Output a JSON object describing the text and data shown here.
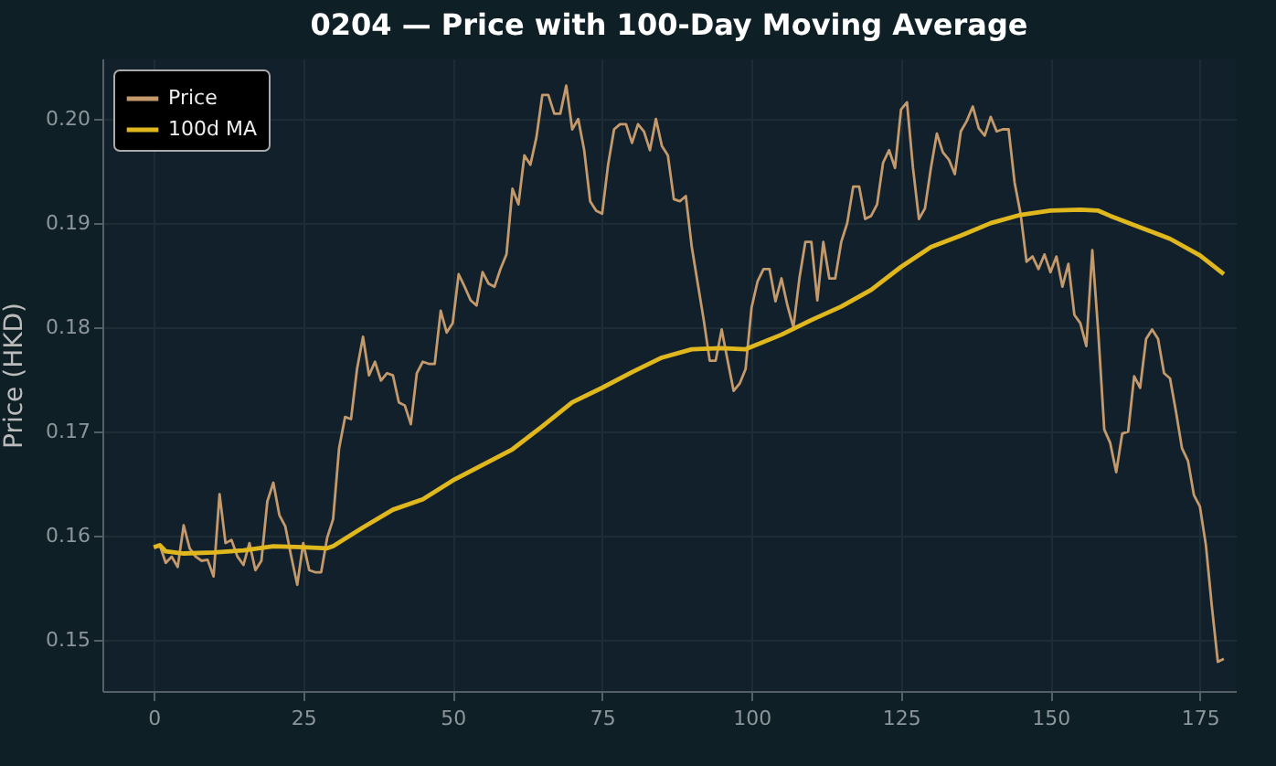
{
  "chart_data": {
    "type": "line",
    "title": "0204 — Price with 100-Day Moving Average",
    "ylabel": "Price (HKD)",
    "xlim": [
      -8.6,
      181
    ],
    "ylim": [
      0.1451,
      0.2058
    ],
    "xticks": [
      0,
      25,
      50,
      75,
      100,
      125,
      150,
      175
    ],
    "yticks": [
      {
        "value": 0.15,
        "label": "0.15"
      },
      {
        "value": 0.16,
        "label": "0.16"
      },
      {
        "value": 0.17,
        "label": "0.17"
      },
      {
        "value": 0.18,
        "label": "0.18"
      },
      {
        "value": 0.19,
        "label": "0.19"
      },
      {
        "value": 0.2,
        "label": "0.20"
      }
    ],
    "grid": true,
    "legend": "top left",
    "line_style": "solid",
    "series": [
      {
        "name": "Price",
        "color": "#c49a6c",
        "x": [
          0,
          1,
          2,
          3,
          4,
          5,
          6,
          7,
          8,
          9,
          10,
          11,
          12,
          13,
          14,
          15,
          16,
          17,
          18,
          19,
          20,
          21,
          22,
          23,
          24,
          25,
          26,
          27,
          28,
          29,
          30,
          31,
          32,
          33,
          34,
          35,
          36,
          37,
          38,
          39,
          40,
          41,
          42,
          43,
          44,
          45,
          46,
          47,
          48,
          49,
          50,
          51,
          52,
          53,
          54,
          55,
          56,
          57,
          58,
          59,
          60,
          61,
          62,
          63,
          64,
          65,
          66,
          67,
          68,
          69,
          70,
          71,
          72,
          73,
          74,
          75,
          76,
          77,
          78,
          79,
          80,
          81,
          82,
          83,
          84,
          85,
          86,
          87,
          88,
          89,
          90,
          91,
          92,
          93,
          94,
          95,
          96,
          97,
          98,
          99,
          100,
          101,
          102,
          103,
          104,
          105,
          106,
          107,
          108,
          109,
          110,
          111,
          112,
          113,
          114,
          115,
          116,
          117,
          118,
          119,
          120,
          121,
          122,
          123,
          124,
          125,
          126,
          127,
          128,
          129,
          130,
          131,
          132,
          133,
          134,
          135,
          136,
          137,
          138,
          139,
          140,
          141,
          142,
          143,
          144,
          145,
          146,
          147,
          148,
          149,
          150,
          151,
          152,
          153,
          154,
          155,
          156,
          157,
          158,
          159,
          160,
          161,
          162,
          163,
          164,
          165,
          166,
          167,
          168,
          169,
          170,
          171,
          172,
          173,
          174,
          175,
          176,
          177,
          178,
          179
        ],
        "values": [
          0.1589,
          0.1591,
          0.1574,
          0.158,
          0.157,
          0.161,
          0.1588,
          0.158,
          0.1576,
          0.1577,
          0.1561,
          0.164,
          0.1593,
          0.1596,
          0.158,
          0.1572,
          0.1593,
          0.1567,
          0.1576,
          0.1633,
          0.1651,
          0.162,
          0.1609,
          0.158,
          0.1553,
          0.1593,
          0.1567,
          0.1565,
          0.1565,
          0.1598,
          0.1616,
          0.1684,
          0.1714,
          0.1712,
          0.176,
          0.1791,
          0.1754,
          0.1767,
          0.1749,
          0.1756,
          0.1754,
          0.1728,
          0.1725,
          0.1707,
          0.1756,
          0.1767,
          0.1765,
          0.1765,
          0.1816,
          0.1795,
          0.1804,
          0.1851,
          0.1839,
          0.1826,
          0.1821,
          0.1853,
          0.1842,
          0.1839,
          0.1856,
          0.187,
          0.1933,
          0.1918,
          0.1965,
          0.1956,
          0.1982,
          0.2023,
          0.2023,
          0.2005,
          0.2005,
          0.2032,
          0.199,
          0.2,
          0.197,
          0.1921,
          0.1912,
          0.1909,
          0.1956,
          0.199,
          0.1995,
          0.1995,
          0.1977,
          0.1995,
          0.1988,
          0.197,
          0.2,
          0.1974,
          0.1965,
          0.1923,
          0.1921,
          0.1926,
          0.1877,
          0.1842,
          0.1807,
          0.1768,
          0.1768,
          0.1798,
          0.1768,
          0.1739,
          0.1746,
          0.176,
          0.1819,
          0.1844,
          0.1856,
          0.1856,
          0.1825,
          0.1847,
          0.1821,
          0.18,
          0.1847,
          0.1882,
          0.1882,
          0.1826,
          0.1882,
          0.1847,
          0.1847,
          0.1882,
          0.19,
          0.1935,
          0.1935,
          0.1904,
          0.1907,
          0.1918,
          0.1958,
          0.197,
          0.1953,
          0.2009,
          0.2016,
          0.1953,
          0.1904,
          0.1914,
          0.1953,
          0.1986,
          0.1968,
          0.1961,
          0.1947,
          0.1988,
          0.1998,
          0.2012,
          0.1991,
          0.1984,
          0.2002,
          0.1988,
          0.199,
          0.199,
          0.1939,
          0.1909,
          0.1863,
          0.1868,
          0.1856,
          0.187,
          0.1853,
          0.1868,
          0.1839,
          0.1861,
          0.1812,
          0.1804,
          0.1782,
          0.1874,
          0.1795,
          0.1702,
          0.1689,
          0.1661,
          0.1698,
          0.17,
          0.1753,
          0.1742,
          0.1789,
          0.1798,
          0.1789,
          0.1756,
          0.1751,
          0.1719,
          0.1684,
          0.1672,
          0.1639,
          0.1628,
          0.1591,
          0.1532,
          0.1479,
          0.1482
        ]
      },
      {
        "name": "100d MA",
        "color": "#e0b81e",
        "x": [
          0,
          1,
          2,
          5,
          10,
          15,
          20,
          25,
          29,
          30,
          35,
          40,
          45,
          50,
          55,
          60,
          65,
          70,
          75,
          80,
          85,
          90,
          95,
          99,
          105,
          110,
          115,
          120,
          125,
          130,
          135,
          140,
          145,
          150,
          155,
          158,
          160,
          165,
          170,
          175,
          179
        ],
        "values": [
          0.1589,
          0.1591,
          0.1585,
          0.1583,
          0.1584,
          0.1586,
          0.159,
          0.1589,
          0.1588,
          0.159,
          0.1608,
          0.1625,
          0.1635,
          0.1653,
          0.1668,
          0.1683,
          0.1705,
          0.1728,
          0.1742,
          0.1757,
          0.1771,
          0.1779,
          0.178,
          0.1779,
          0.1793,
          0.1807,
          0.182,
          0.1836,
          0.1858,
          0.1877,
          0.1888,
          0.19,
          0.1908,
          0.1912,
          0.1913,
          0.1912,
          0.1907,
          0.1896,
          0.1885,
          0.1869,
          0.1851
        ]
      }
    ]
  }
}
